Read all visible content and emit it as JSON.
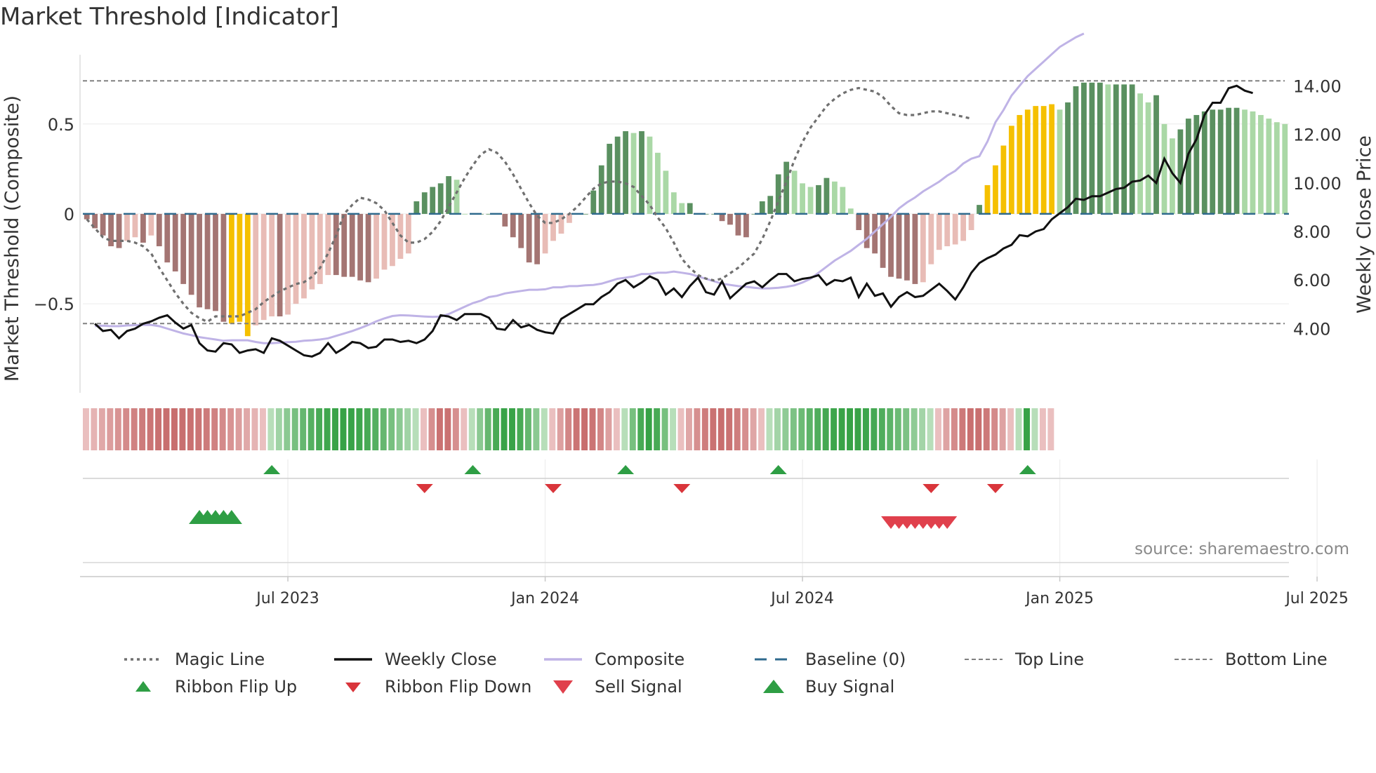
{
  "title": "Market Threshold [Indicator]",
  "source": "source: sharemaestro.com",
  "colors": {
    "neg_strong": "#a47573",
    "neg_weak": "#e8bcb6",
    "pos_strong": "#5a9060",
    "pos_weak": "#aad8a6",
    "extreme": "#f5c000",
    "magic": "#707070",
    "close": "#111111",
    "composite": "#bfb3e6",
    "baseline": "#2f6a8d",
    "threshold": "#808080",
    "up": "#2e9e44",
    "down": "#d9353b"
  },
  "chart_data": {
    "type": "bar",
    "title": "Market Threshold [Indicator]",
    "ylabel": "Market Threshold (Composite)",
    "y2label": "Weekly Close Price",
    "ylim": [
      -0.8,
      0.78
    ],
    "y2lim": [
      2.8,
      14.5
    ],
    "yticks": [
      {
        "v": 0.5,
        "label": "0.5"
      },
      {
        "v": 0,
        "label": "0"
      },
      {
        "v": -0.5,
        "label": "−0.5"
      }
    ],
    "y2ticks": [
      {
        "v": 14,
        "label": "14.00"
      },
      {
        "v": 12,
        "label": "12.00"
      },
      {
        "v": 10,
        "label": "10.00"
      },
      {
        "v": 8,
        "label": "8.00"
      },
      {
        "v": 6,
        "label": "6.00"
      },
      {
        "v": 4,
        "label": "4.00"
      }
    ],
    "xticks": [
      {
        "i": 25,
        "label": "Jul 2023"
      },
      {
        "i": 57,
        "label": "Jan 2024"
      },
      {
        "i": 89,
        "label": "Jul 2024"
      },
      {
        "i": 121,
        "label": "Jan 2025"
      },
      {
        "i": 153,
        "label": "Jul 2025"
      }
    ],
    "top_line": 0.74,
    "bottom_line": -0.61,
    "composite": [
      -0.03,
      -0.08,
      -0.12,
      -0.18,
      -0.19,
      -0.15,
      -0.13,
      -0.16,
      -0.12,
      -0.18,
      -0.27,
      -0.32,
      -0.39,
      -0.45,
      -0.52,
      -0.53,
      -0.54,
      -0.6,
      -0.61,
      -0.6,
      -0.68,
      -0.62,
      -0.59,
      -0.57,
      -0.57,
      -0.56,
      -0.5,
      -0.47,
      -0.42,
      -0.39,
      -0.34,
      -0.34,
      -0.35,
      -0.35,
      -0.37,
      -0.38,
      -0.36,
      -0.31,
      -0.29,
      -0.25,
      -0.22,
      0.07,
      0.12,
      0.15,
      0.17,
      0.21,
      0.19,
      0.0,
      0.0,
      0.0,
      0.0,
      0.0,
      -0.07,
      -0.13,
      -0.19,
      -0.27,
      -0.28,
      -0.22,
      -0.15,
      -0.11,
      -0.05,
      0.0,
      0.0,
      0.13,
      0.27,
      0.39,
      0.43,
      0.46,
      0.45,
      0.46,
      0.43,
      0.34,
      0.24,
      0.12,
      0.06,
      0.06,
      0.0,
      0.0,
      0.0,
      -0.04,
      -0.06,
      -0.12,
      -0.13,
      0.0,
      0.07,
      0.1,
      0.22,
      0.29,
      0.24,
      0.17,
      0.15,
      0.16,
      0.2,
      0.18,
      0.15,
      0.03,
      -0.09,
      -0.19,
      -0.22,
      -0.3,
      -0.35,
      -0.36,
      -0.37,
      -0.39,
      -0.38,
      -0.28,
      -0.2,
      -0.18,
      -0.17,
      -0.15,
      -0.09,
      0.05,
      0.16,
      0.27,
      0.38,
      0.49,
      0.55,
      0.58,
      0.6,
      0.6,
      0.61,
      0.58,
      0.62,
      0.71,
      0.73,
      0.73,
      0.73,
      0.72,
      0.72,
      0.72,
      0.72,
      0.67,
      0.62,
      0.66,
      0.5,
      0.42,
      0.47,
      0.53,
      0.55,
      0.57,
      0.58,
      0.58,
      0.59,
      0.59,
      0.58,
      0.57,
      0.55,
      0.53,
      0.51,
      0.5
    ],
    "extreme_bars": [
      18,
      19,
      20,
      112,
      113,
      114,
      115,
      116,
      117,
      118,
      119,
      120
    ],
    "magic_line": [
      -0.03,
      -0.08,
      -0.13,
      -0.15,
      -0.15,
      -0.15,
      -0.16,
      -0.18,
      -0.22,
      -0.3,
      -0.37,
      -0.44,
      -0.5,
      -0.55,
      -0.58,
      -0.6,
      -0.57,
      -0.57,
      -0.57,
      -0.57,
      -0.55,
      -0.53,
      -0.49,
      -0.46,
      -0.43,
      -0.41,
      -0.39,
      -0.38,
      -0.35,
      -0.3,
      -0.22,
      -0.12,
      0.0,
      0.05,
      0.09,
      0.08,
      0.06,
      0.02,
      -0.05,
      -0.12,
      -0.16,
      -0.16,
      -0.14,
      -0.1,
      -0.04,
      0.04,
      0.12,
      0.2,
      0.27,
      0.33,
      0.36,
      0.34,
      0.29,
      0.22,
      0.14,
      0.06,
      -0.01,
      -0.05,
      -0.05,
      -0.03,
      0.0,
      0.04,
      0.09,
      0.14,
      0.17,
      0.18,
      0.18,
      0.17,
      0.15,
      0.1,
      0.05,
      -0.02,
      -0.08,
      -0.16,
      -0.25,
      -0.3,
      -0.34,
      -0.36,
      -0.37,
      -0.36,
      -0.33,
      -0.3,
      -0.26,
      -0.22,
      -0.14,
      -0.04,
      0.07,
      0.18,
      0.3,
      0.4,
      0.48,
      0.54,
      0.6,
      0.64,
      0.67,
      0.69,
      0.7,
      0.69,
      0.68,
      0.65,
      0.6,
      0.56,
      0.55,
      0.55,
      0.56,
      0.57,
      0.57,
      0.56,
      0.55,
      0.54,
      0.53
    ],
    "magic_line_start": 0,
    "close": [
      4.2,
      3.9,
      3.95,
      3.6,
      3.9,
      4.0,
      4.2,
      4.3,
      4.45,
      4.55,
      4.25,
      4.0,
      4.15,
      3.4,
      3.1,
      3.05,
      3.4,
      3.35,
      3.0,
      3.1,
      3.15,
      3.0,
      3.6,
      3.5,
      3.3,
      3.1,
      2.9,
      2.85,
      3.0,
      3.4,
      3.0,
      3.2,
      3.45,
      3.4,
      3.2,
      3.25,
      3.55,
      3.55,
      3.45,
      3.5,
      3.4,
      3.55,
      3.9,
      4.55,
      4.5,
      4.35,
      4.6,
      4.6,
      4.6,
      4.45,
      4.0,
      3.95,
      4.35,
      4.05,
      4.15,
      3.95,
      3.85,
      3.8,
      4.4,
      4.6,
      4.8,
      5.0,
      5.0,
      5.3,
      5.5,
      5.85,
      6.0,
      5.7,
      5.9,
      6.15,
      6.0,
      5.4,
      5.65,
      5.3,
      5.75,
      6.1,
      5.5,
      5.4,
      5.95,
      5.25,
      5.55,
      5.85,
      5.95,
      5.7,
      6.0,
      6.25,
      6.25,
      5.95,
      6.05,
      6.1,
      6.2,
      5.8,
      6.0,
      5.95,
      6.1,
      5.3,
      5.85,
      5.35,
      5.45,
      4.9,
      5.3,
      5.5,
      5.3,
      5.35,
      5.6,
      5.85,
      5.55,
      5.2,
      5.7,
      6.3,
      6.7,
      6.9,
      7.05,
      7.3,
      7.45,
      7.85,
      7.8,
      8.0,
      8.1,
      8.5,
      8.75,
      9.0,
      9.35,
      9.3,
      9.45,
      9.45,
      9.6,
      9.75,
      9.8,
      10.05,
      10.1,
      10.3,
      10.0,
      11.0,
      10.4,
      10.0,
      11.2,
      11.8,
      12.8,
      13.3,
      13.3,
      13.9,
      14.0,
      13.8,
      13.7
    ],
    "close_start": 1,
    "comp_avg": [
      4.1,
      4.12,
      4.1,
      4.1,
      4.13,
      4.14,
      4.15,
      4.15,
      4.1,
      4.0,
      3.9,
      3.8,
      3.73,
      3.65,
      3.6,
      3.55,
      3.5,
      3.52,
      3.52,
      3.52,
      3.45,
      3.4,
      3.4,
      3.42,
      3.44,
      3.46,
      3.5,
      3.52,
      3.55,
      3.6,
      3.7,
      3.8,
      3.9,
      4.02,
      4.15,
      4.3,
      4.42,
      4.52,
      4.55,
      4.54,
      4.52,
      4.5,
      4.48,
      4.5,
      4.6,
      4.75,
      4.9,
      5.05,
      5.15,
      5.3,
      5.35,
      5.45,
      5.5,
      5.55,
      5.6,
      5.6,
      5.62,
      5.7,
      5.7,
      5.75,
      5.75,
      5.78,
      5.8,
      5.85,
      5.95,
      6.05,
      6.1,
      6.15,
      6.25,
      6.25,
      6.3,
      6.3,
      6.35,
      6.3,
      6.25,
      6.15,
      6.05,
      5.95,
      5.85,
      5.8,
      5.75,
      5.72,
      5.68,
      5.65,
      5.66,
      5.68,
      5.72,
      5.78,
      5.9,
      6.05,
      6.3,
      6.55,
      6.8,
      7.0,
      7.2,
      7.45,
      7.7,
      8.0,
      8.3,
      8.6,
      8.95,
      9.2,
      9.4,
      9.65,
      9.85,
      10.05,
      10.3,
      10.5,
      10.8,
      11.0,
      11.1,
      11.7,
      12.5,
      13.0,
      13.6,
      14.0,
      14.4,
      14.7,
      15.0,
      15.3,
      15.6,
      15.8,
      16.0,
      16.15
    ],
    "comp_avg_note": "Composite line plotted on the price axis",
    "ribbon_groups": [
      [
        0,
        22,
        "neg"
      ],
      [
        23,
        41,
        "pos"
      ],
      [
        42,
        47,
        "neg"
      ],
      [
        48,
        57,
        "pos"
      ],
      [
        58,
        66,
        "neg"
      ],
      [
        67,
        73,
        "pos"
      ],
      [
        74,
        84,
        "neg"
      ],
      [
        85,
        105,
        "pos"
      ],
      [
        106,
        115,
        "neg"
      ],
      [
        116,
        118,
        "pos"
      ],
      [
        119,
        120,
        "neg"
      ]
    ],
    "ribbon_flip_up": [
      23,
      48,
      67,
      86,
      117
    ],
    "ribbon_flip_down": [
      42,
      58,
      74,
      105,
      113
    ],
    "buy_signals": [
      14,
      15,
      16,
      17,
      18
    ],
    "sell_signals": [
      100,
      101,
      102,
      103,
      104,
      105,
      106,
      107
    ],
    "xlabels": [
      "Jul 2023",
      "Jan 2024",
      "Jul 2024",
      "Jan 2025",
      "Jul 2025"
    ]
  },
  "legend": {
    "magic_line": "Magic Line",
    "weekly_close": "Weekly Close",
    "composite": "Composite",
    "baseline": "Baseline (0)",
    "top_line": "Top Line",
    "bottom_line": "Bottom Line",
    "ribbon_flip_up": "Ribbon Flip Up",
    "ribbon_flip_down": "Ribbon Flip Down",
    "sell_signal": "Sell Signal",
    "buy_signal": "Buy Signal"
  }
}
